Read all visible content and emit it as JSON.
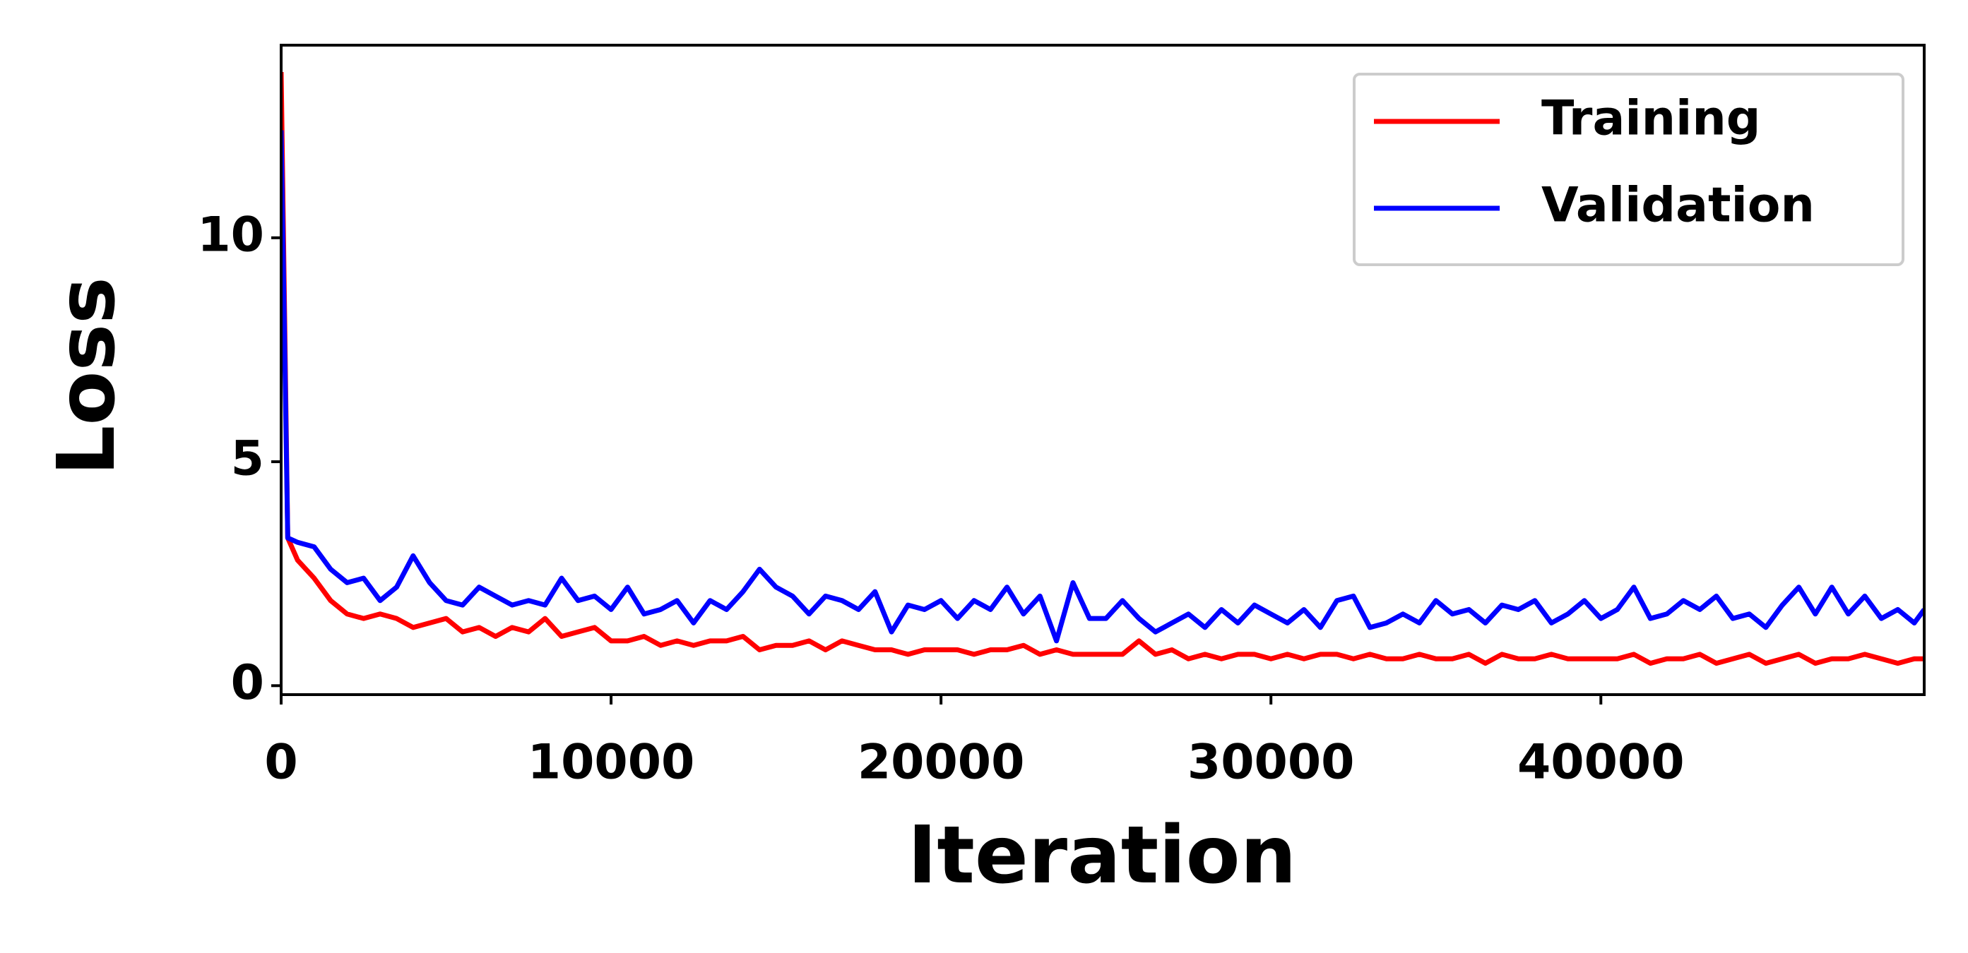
{
  "chart_data": {
    "type": "line",
    "xlabel": "Iteration",
    "ylabel": "Loss",
    "x": [
      0,
      200,
      500,
      1000,
      1500,
      2000,
      2500,
      3000,
      3500,
      4000,
      4500,
      5000,
      5500,
      6000,
      6500,
      7000,
      7500,
      8000,
      8500,
      9000,
      9500,
      10000,
      10500,
      11000,
      11500,
      12000,
      12500,
      13000,
      13500,
      14000,
      14500,
      15000,
      15500,
      16000,
      16500,
      17000,
      17500,
      18000,
      18500,
      19000,
      19500,
      20000,
      20500,
      21000,
      21500,
      22000,
      22500,
      23000,
      23500,
      24000,
      24500,
      25000,
      25500,
      26000,
      26500,
      27000,
      27500,
      28000,
      28500,
      29000,
      29500,
      30000,
      30500,
      31000,
      31500,
      32000,
      32500,
      33000,
      33500,
      34000,
      34500,
      35000,
      35500,
      36000,
      36500,
      37000,
      37500,
      38000,
      38500,
      39000,
      39500,
      40000,
      40500,
      41000,
      41500,
      42000,
      42500,
      43000,
      43500,
      44000,
      44500,
      45000,
      45500,
      46000,
      46500,
      47000,
      47500,
      48000,
      48500,
      49000,
      49500,
      49800
    ],
    "series": [
      {
        "name": "Training",
        "color": "#ff0000",
        "values": [
          13.7,
          3.3,
          2.8,
          2.4,
          1.9,
          1.6,
          1.5,
          1.6,
          1.5,
          1.3,
          1.4,
          1.5,
          1.2,
          1.3,
          1.1,
          1.3,
          1.2,
          1.5,
          1.1,
          1.2,
          1.3,
          1.0,
          1.0,
          1.1,
          0.9,
          1.0,
          0.9,
          1.0,
          1.0,
          1.1,
          0.8,
          0.9,
          0.9,
          1.0,
          0.8,
          1.0,
          0.9,
          0.8,
          0.8,
          0.7,
          0.8,
          0.8,
          0.8,
          0.7,
          0.8,
          0.8,
          0.9,
          0.7,
          0.8,
          0.7,
          0.7,
          0.7,
          0.7,
          1.0,
          0.7,
          0.8,
          0.6,
          0.7,
          0.6,
          0.7,
          0.7,
          0.6,
          0.7,
          0.6,
          0.7,
          0.7,
          0.6,
          0.7,
          0.6,
          0.6,
          0.7,
          0.6,
          0.6,
          0.7,
          0.5,
          0.7,
          0.6,
          0.6,
          0.7,
          0.6,
          0.6,
          0.6,
          0.6,
          0.7,
          0.5,
          0.6,
          0.6,
          0.7,
          0.5,
          0.6,
          0.7,
          0.5,
          0.6,
          0.7,
          0.5,
          0.6,
          0.6,
          0.7,
          0.6,
          0.5,
          0.6,
          0.6
        ]
      },
      {
        "name": "Validation",
        "color": "#0000ff",
        "values": [
          12.4,
          3.3,
          3.2,
          3.1,
          2.6,
          2.3,
          2.4,
          1.9,
          2.2,
          2.9,
          2.3,
          1.9,
          1.8,
          2.2,
          2.0,
          1.8,
          1.9,
          1.8,
          2.4,
          1.9,
          2.0,
          1.7,
          2.2,
          1.6,
          1.7,
          1.9,
          1.4,
          1.9,
          1.7,
          2.1,
          2.6,
          2.2,
          2.0,
          1.6,
          2.0,
          1.9,
          1.7,
          2.1,
          1.2,
          1.8,
          1.7,
          1.9,
          1.5,
          1.9,
          1.7,
          2.2,
          1.6,
          2.0,
          1.0,
          2.3,
          1.5,
          1.5,
          1.9,
          1.5,
          1.2,
          1.4,
          1.6,
          1.3,
          1.7,
          1.4,
          1.8,
          1.6,
          1.4,
          1.7,
          1.3,
          1.9,
          2.0,
          1.3,
          1.4,
          1.6,
          1.4,
          1.9,
          1.6,
          1.7,
          1.4,
          1.8,
          1.7,
          1.9,
          1.4,
          1.6,
          1.9,
          1.5,
          1.7,
          2.2,
          1.5,
          1.6,
          1.9,
          1.7,
          2.0,
          1.5,
          1.6,
          1.3,
          1.8,
          2.2,
          1.6,
          2.2,
          1.6,
          2.0,
          1.5,
          1.7,
          1.4,
          1.7
        ]
      }
    ],
    "xlim": [
      0,
      49800
    ],
    "ylim": [
      -0.2,
      14.3
    ],
    "xticks": [
      0,
      10000,
      20000,
      30000,
      40000
    ],
    "yticks": [
      0,
      5,
      10
    ],
    "grid": false,
    "legend": "upper right"
  }
}
